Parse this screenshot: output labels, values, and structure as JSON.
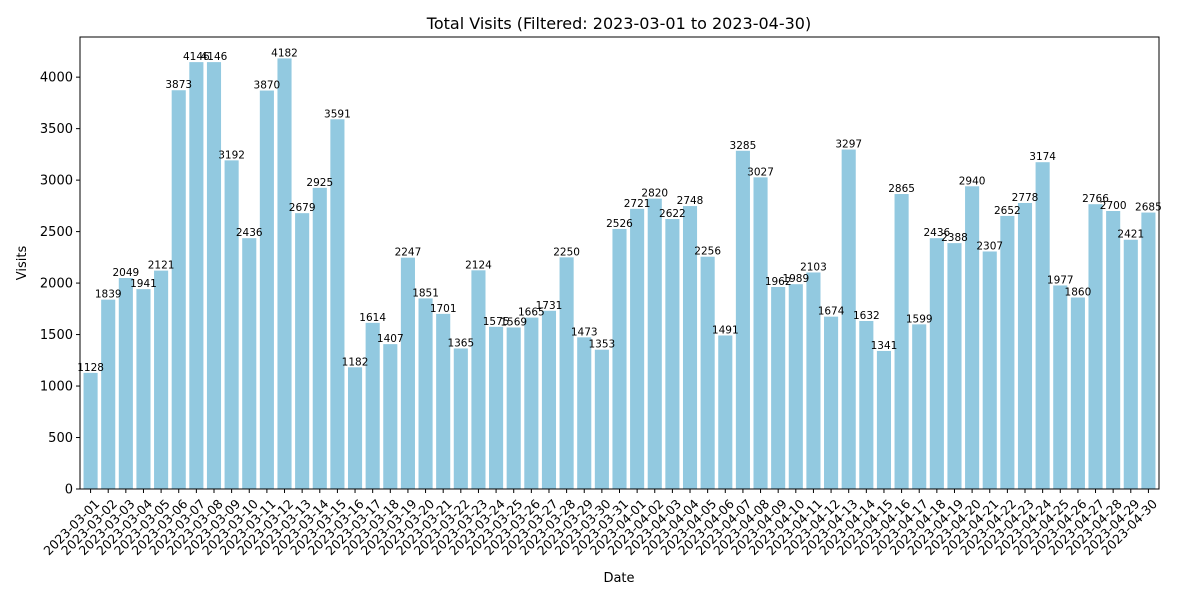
{
  "chart_data": {
    "type": "bar",
    "title": "Total Visits (Filtered: 2023-03-01 to 2023-04-30)",
    "xlabel": "Date",
    "ylabel": "Visits",
    "ylim": [
      0,
      4390
    ],
    "yticks": [
      0,
      500,
      1000,
      1500,
      2000,
      2500,
      3000,
      3500,
      4000
    ],
    "grid": false,
    "bar_color": "#92c9e0",
    "categories": [
      "2023-03-01",
      "2023-03-02",
      "2023-03-03",
      "2023-03-04",
      "2023-03-05",
      "2023-03-06",
      "2023-03-07",
      "2023-03-08",
      "2023-03-09",
      "2023-03-10",
      "2023-03-11",
      "2023-03-12",
      "2023-03-13",
      "2023-03-14",
      "2023-03-15",
      "2023-03-16",
      "2023-03-17",
      "2023-03-18",
      "2023-03-19",
      "2023-03-20",
      "2023-03-21",
      "2023-03-22",
      "2023-03-23",
      "2023-03-24",
      "2023-03-25",
      "2023-03-26",
      "2023-03-27",
      "2023-03-28",
      "2023-03-29",
      "2023-03-30",
      "2023-03-31",
      "2023-04-01",
      "2023-04-02",
      "2023-04-03",
      "2023-04-04",
      "2023-04-05",
      "2023-04-06",
      "2023-04-07",
      "2023-04-08",
      "2023-04-09",
      "2023-04-10",
      "2023-04-11",
      "2023-04-12",
      "2023-04-13",
      "2023-04-14",
      "2023-04-15",
      "2023-04-16",
      "2023-04-17",
      "2023-04-18",
      "2023-04-19",
      "2023-04-20",
      "2023-04-21",
      "2023-04-22",
      "2023-04-23",
      "2023-04-24",
      "2023-04-25",
      "2023-04-26",
      "2023-04-27",
      "2023-04-28",
      "2023-04-29",
      "2023-04-30"
    ],
    "values": [
      1128,
      1839,
      2049,
      1941,
      2121,
      3873,
      4146,
      4146,
      3192,
      2436,
      3870,
      4182,
      2679,
      2925,
      3591,
      1182,
      1614,
      1407,
      2247,
      1851,
      1701,
      1365,
      2124,
      1575,
      1569,
      1665,
      1731,
      2250,
      1473,
      1353,
      2526,
      2721,
      2820,
      2622,
      2748,
      2256,
      1491,
      3285,
      3027,
      1962,
      1989,
      2103,
      1674,
      3297,
      1632,
      1341,
      2865,
      1599,
      2436,
      2388,
      2940,
      2307,
      2652,
      2778,
      3174,
      1977,
      1860,
      2766,
      2700,
      2421,
      2685
    ]
  }
}
